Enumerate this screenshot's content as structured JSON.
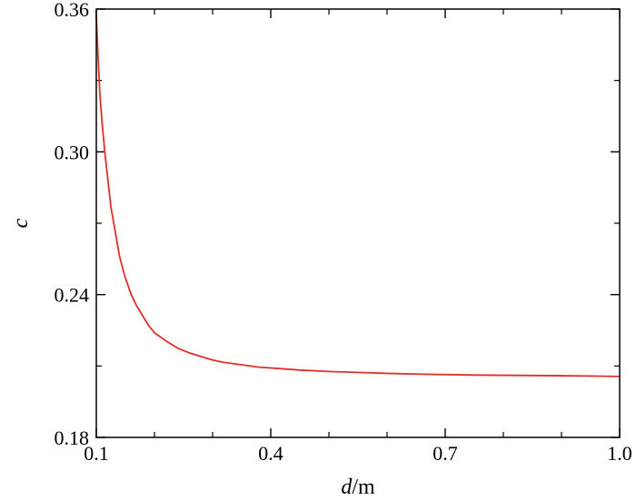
{
  "chart_data": {
    "type": "line",
    "xlabel_var": "d",
    "xlabel_unit": "/m",
    "ylabel": "c",
    "xlim": [
      0.1,
      1.0
    ],
    "ylim": [
      0.18,
      0.36
    ],
    "xticks": [
      0.1,
      0.4,
      0.7,
      1.0
    ],
    "xtick_labels": [
      "0.1",
      "0.4",
      "0.7",
      "1.0"
    ],
    "yticks": [
      0.18,
      0.24,
      0.3,
      0.36
    ],
    "ytick_labels": [
      "0.18",
      "0.24",
      "0.30",
      "0.36"
    ],
    "x_minor_step": 0.1,
    "y_minor_step": 0.03,
    "grid": false,
    "legend": "none",
    "series": [
      {
        "color": "#e0302a",
        "x": [
          0.1,
          0.103,
          0.106,
          0.11,
          0.115,
          0.12,
          0.125,
          0.13,
          0.14,
          0.15,
          0.16,
          0.17,
          0.18,
          0.19,
          0.2,
          0.22,
          0.24,
          0.26,
          0.28,
          0.3,
          0.32,
          0.35,
          0.38,
          0.41,
          0.45,
          0.5,
          0.55,
          0.6,
          0.65,
          0.7,
          0.75,
          0.8,
          0.85,
          0.9,
          0.95,
          1.0
        ],
        "y": [
          0.357,
          0.34,
          0.325,
          0.312,
          0.299,
          0.288,
          0.277,
          0.27,
          0.256,
          0.247,
          0.24,
          0.235,
          0.231,
          0.227,
          0.224,
          0.2205,
          0.2175,
          0.2155,
          0.214,
          0.2125,
          0.2115,
          0.2105,
          0.2095,
          0.209,
          0.2083,
          0.2077,
          0.2073,
          0.2069,
          0.2066,
          0.2064,
          0.2062,
          0.2061,
          0.206,
          0.2059,
          0.2058,
          0.2056
        ]
      }
    ]
  }
}
